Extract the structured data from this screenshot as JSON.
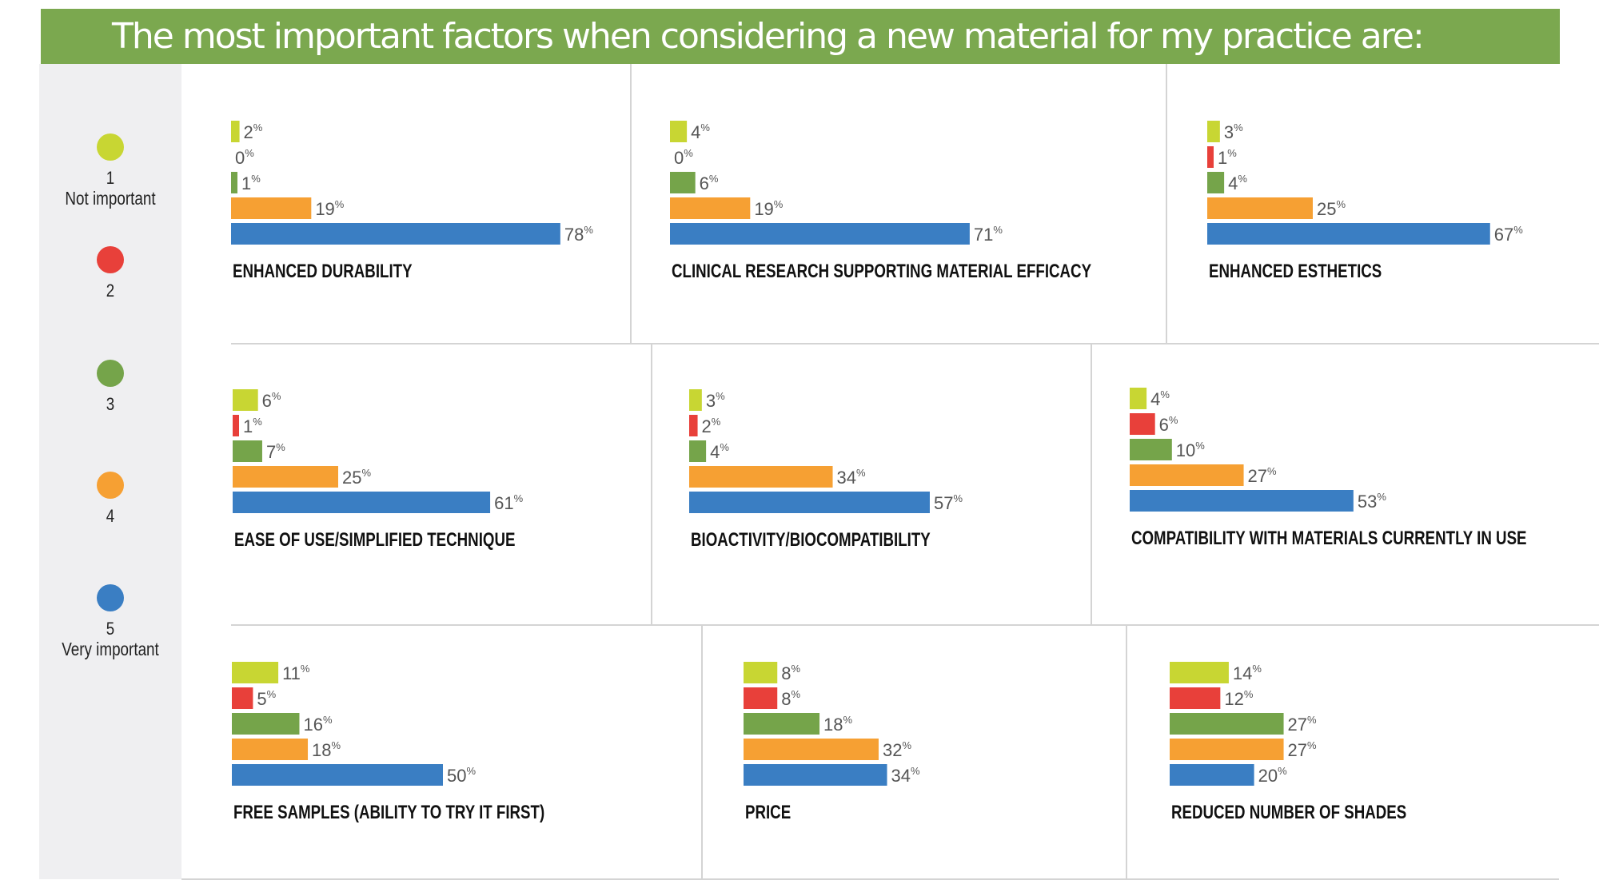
{
  "header": {
    "title": "The most important factors when considering a new material for my practice are:"
  },
  "colors": {
    "header_bg": "#7ba84f",
    "r1": "#c8d633",
    "r2": "#e8403a",
    "r3": "#75a44a",
    "r4": "#f6a033",
    "r5": "#3a7ec3"
  },
  "legend": [
    {
      "num": "1",
      "label": "Not important",
      "color": "#c8d633"
    },
    {
      "num": "2",
      "label": "",
      "color": "#e8403a"
    },
    {
      "num": "3",
      "label": "",
      "color": "#75a44a"
    },
    {
      "num": "4",
      "label": "",
      "color": "#f6a033"
    },
    {
      "num": "5",
      "label": "Very important",
      "color": "#3a7ec3"
    }
  ],
  "chart_data": {
    "type": "bar",
    "orientation": "horizontal",
    "title": "The most important factors when considering a new material for my practice are:",
    "series_names": [
      "1 Not important",
      "2",
      "3",
      "4",
      "5 Very important"
    ],
    "unit": "%",
    "xlim": [
      0,
      100
    ],
    "panels": [
      {
        "title": "ENHANCED DURABILITY",
        "values": [
          2,
          0,
          1,
          19,
          78
        ]
      },
      {
        "title": "CLINICAL RESEARCH SUPPORTING MATERIAL EFFICACY",
        "values": [
          4,
          0,
          6,
          19,
          71
        ]
      },
      {
        "title": "ENHANCED ESTHETICS",
        "values": [
          3,
          1,
          4,
          25,
          67
        ]
      },
      {
        "title": "EASE OF USE/SIMPLIFIED TECHNIQUE",
        "values": [
          6,
          1,
          7,
          25,
          61
        ]
      },
      {
        "title": "BIOACTIVITY/BIOCOMPATIBILITY",
        "values": [
          3,
          2,
          4,
          34,
          57
        ]
      },
      {
        "title": "COMPATIBILITY WITH MATERIALS CURRENTLY IN USE",
        "values": [
          4,
          6,
          10,
          27,
          53
        ]
      },
      {
        "title": "FREE SAMPLES (ABILITY TO TRY IT FIRST)",
        "values": [
          11,
          5,
          16,
          18,
          50
        ]
      },
      {
        "title": "PRICE",
        "values": [
          8,
          8,
          18,
          32,
          34
        ]
      },
      {
        "title": "REDUCED NUMBER OF SHADES",
        "values": [
          14,
          12,
          27,
          27,
          20
        ]
      }
    ]
  }
}
